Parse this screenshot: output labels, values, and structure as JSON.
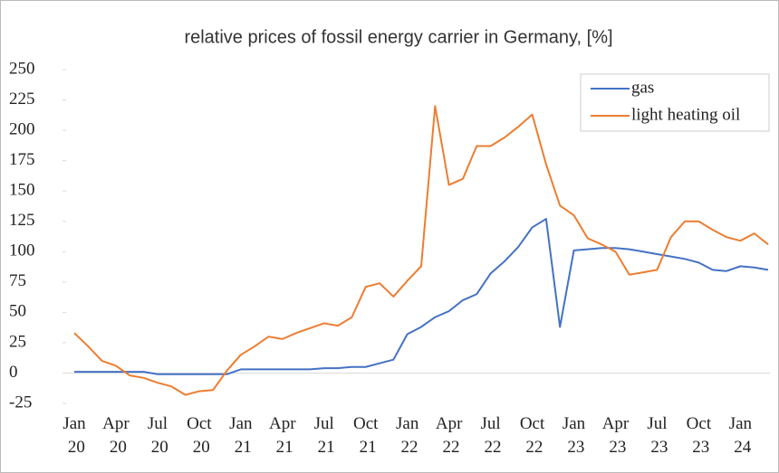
{
  "chart_data": {
    "type": "line",
    "title": "relative prices of fossil energy carrier in Germany, [%]",
    "categories": [
      "Jan 20",
      null,
      null,
      "Apr 20",
      null,
      null,
      "Jul 20",
      null,
      null,
      "Oct 20",
      null,
      null,
      "Jan 21",
      null,
      null,
      "Apr 21",
      null,
      null,
      "Jul 21",
      null,
      null,
      "Oct 21",
      null,
      null,
      "Jan 22",
      null,
      null,
      "Apr 22",
      null,
      null,
      "Jul 22",
      null,
      null,
      "Oct 22",
      null,
      null,
      "Jan 23",
      null,
      null,
      "Apr 23",
      null,
      null,
      "Jul 23",
      null,
      null,
      "Oct 23",
      null,
      null,
      "Jan 24",
      null,
      null
    ],
    "series": [
      {
        "name": "gas",
        "color": "#4472c4",
        "values": [
          1,
          1,
          1,
          1,
          1,
          1,
          -1,
          -1,
          -1,
          -1,
          -1,
          -1,
          3,
          3,
          3,
          3,
          3,
          3,
          4,
          4,
          5,
          5,
          8,
          11,
          32,
          38,
          46,
          51,
          60,
          65,
          82,
          92,
          104,
          120,
          127,
          38,
          101,
          102,
          103,
          103,
          102,
          100,
          98,
          96,
          94,
          91,
          85,
          84,
          88,
          87,
          85
        ]
      },
      {
        "name": "light heating oil",
        "color": "#ed7d31",
        "values": [
          33,
          22,
          10,
          6,
          -2,
          -4,
          -8,
          -11,
          -18,
          -15,
          -14,
          2,
          15,
          22,
          30,
          28,
          33,
          37,
          41,
          39,
          46,
          71,
          74,
          63,
          76,
          88,
          220,
          155,
          160,
          187,
          187,
          194,
          203,
          213,
          172,
          138,
          130,
          111,
          106,
          100,
          81,
          83,
          85,
          112,
          125,
          125,
          118,
          112,
          109,
          115,
          106
        ]
      }
    ],
    "ylim": [
      -25,
      250
    ],
    "yticks": [
      -25,
      0,
      25,
      50,
      75,
      100,
      125,
      150,
      175,
      200,
      225,
      250
    ],
    "legend": "upper right"
  }
}
